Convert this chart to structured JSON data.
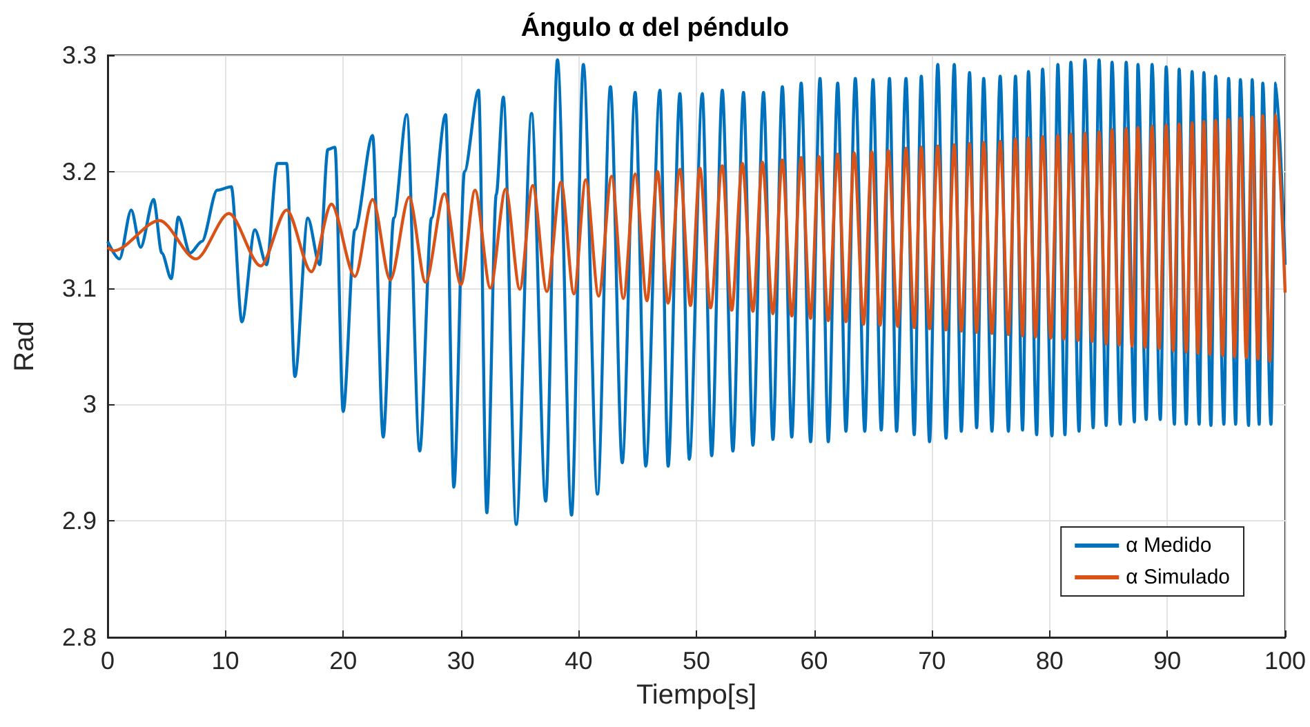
{
  "chart_data": {
    "type": "line",
    "title": "Ángulo α del péndulo",
    "xlabel": "Tiempo[s]",
    "ylabel": "Rad",
    "xlim": [
      0,
      100
    ],
    "xticks": [
      0,
      10,
      20,
      30,
      40,
      50,
      60,
      70,
      80,
      90,
      100
    ],
    "ylim": [
      2.8,
      3.3
    ],
    "yticks": [
      2.8,
      2.9,
      3,
      3.1,
      3.2,
      3.3
    ],
    "grid": true,
    "legend": "bottom right",
    "marker": "none",
    "line_style": "solid",
    "series": [
      {
        "name": "α Medido",
        "color": "#0072bd",
        "x": [
          0,
          1,
          2,
          2.8,
          3.9,
          4.6,
          5.4,
          6,
          7,
          8,
          9.3,
          10.5,
          11.4,
          12.5,
          13.5,
          14.4,
          15.2,
          15.9,
          17,
          18,
          18.7,
          19.3,
          20,
          21,
          22.5,
          23.4,
          24.3,
          25.4,
          26.5,
          27.5,
          28.7,
          29.4,
          30.3,
          31.5,
          32.2,
          33,
          33.6,
          34.7,
          36,
          37.2,
          38.2,
          39.4,
          40.4,
          41.6,
          42.7,
          43.7,
          44.8,
          45.7,
          46.9,
          47.6,
          48.6,
          49.4,
          50.5,
          51.3,
          52.2,
          53.1,
          54,
          54.8,
          55.7,
          56.5,
          57.3,
          58.1,
          58.9,
          59.7,
          60.5,
          61.2,
          62,
          62.7,
          63.5,
          64.3,
          65,
          65.7,
          66.4,
          67,
          67.8,
          68.5,
          69.1,
          69.8,
          70.5,
          71.2,
          71.9,
          72.5,
          73.2,
          73.8,
          74.4,
          75.1,
          75.8,
          76.5,
          77.1,
          77.7,
          78.2,
          78.9,
          79.4,
          80.2,
          80.7,
          81.3,
          81.8,
          82.5,
          83,
          83.7,
          84.2,
          84.8,
          85.3,
          86,
          86.5,
          87.2,
          87.5,
          88.2,
          88.7,
          89.4,
          89.9,
          90.6,
          91,
          91.6,
          92.1,
          92.7,
          93.1,
          93.7,
          94.1,
          94.8,
          95.2,
          95.8,
          96.2,
          96.9,
          97.2,
          97.8,
          98.1,
          98.8,
          99.2,
          100
        ],
        "values": [
          3.14,
          3.125,
          3.167,
          3.135,
          3.176,
          3.13,
          3.108,
          3.161,
          3.13,
          3.14,
          3.184,
          3.187,
          3.071,
          3.15,
          3.12,
          3.207,
          3.207,
          3.024,
          3.16,
          3.12,
          3.219,
          3.221,
          2.994,
          3.15,
          3.231,
          2.972,
          3.16,
          3.249,
          2.96,
          3.16,
          3.249,
          2.929,
          3.2,
          3.27,
          2.907,
          3.18,
          3.264,
          2.897,
          3.25,
          2.917,
          3.296,
          2.905,
          3.292,
          2.923,
          3.273,
          2.95,
          3.268,
          2.947,
          3.27,
          2.947,
          3.267,
          2.953,
          3.267,
          2.956,
          3.27,
          2.96,
          3.268,
          2.965,
          3.268,
          2.97,
          3.273,
          2.972,
          3.276,
          2.968,
          3.28,
          2.968,
          3.276,
          2.977,
          3.28,
          2.977,
          3.279,
          2.978,
          3.28,
          2.977,
          3.28,
          2.974,
          3.282,
          2.968,
          3.292,
          2.971,
          3.292,
          2.977,
          3.285,
          2.98,
          3.28,
          2.977,
          3.282,
          2.977,
          3.282,
          2.978,
          3.286,
          2.974,
          3.288,
          2.973,
          3.292,
          2.974,
          3.294,
          2.977,
          3.296,
          2.98,
          3.296,
          2.982,
          3.294,
          2.983,
          3.294,
          2.985,
          3.292,
          2.987,
          3.292,
          2.987,
          3.29,
          2.983,
          3.288,
          2.983,
          3.286,
          2.983,
          3.285,
          2.982,
          3.282,
          2.983,
          3.28,
          2.983,
          3.279,
          2.982,
          3.279,
          2.983,
          3.276,
          2.983,
          3.276,
          3.12
        ]
      },
      {
        "name": "α Simulado",
        "color": "#d95319",
        "x": [
          0,
          0.5,
          4.4,
          7.5,
          10.3,
          13,
          15.2,
          17.3,
          19,
          21,
          22.5,
          24,
          25.6,
          27,
          28.6,
          30,
          31.2,
          32.5,
          33.8,
          35,
          36.1,
          37.3,
          38.5,
          39.6,
          40.6,
          41.7,
          42.8,
          43.8,
          44.8,
          45.8,
          46.7,
          47.6,
          48.6,
          49.5,
          50.3,
          51.2,
          52.2,
          53,
          53.9,
          54.8,
          55.6,
          56.5,
          57.3,
          58.1,
          58.9,
          59.7,
          60.4,
          61.2,
          62,
          62.7,
          63.4,
          64.2,
          64.9,
          65.6,
          66.3,
          67.1,
          67.8,
          68.5,
          69.1,
          69.8,
          70.5,
          71.2,
          71.9,
          72.5,
          73.2,
          73.8,
          74.4,
          75.1,
          75.8,
          76.5,
          77.1,
          77.7,
          78.2,
          78.8,
          79.4,
          80.1,
          80.7,
          81.2,
          81.8,
          82.4,
          83,
          83.6,
          84.2,
          84.8,
          85.3,
          85.9,
          86.5,
          87,
          87.5,
          88.1,
          88.7,
          89.3,
          89.9,
          90.5,
          91,
          91.6,
          92.1,
          92.6,
          93.1,
          93.6,
          94.1,
          94.7,
          95.2,
          95.7,
          96.2,
          96.7,
          97.2,
          97.7,
          98.1,
          98.7,
          99.2,
          100
        ],
        "values": [
          3.135,
          3.132,
          3.158,
          3.125,
          3.164,
          3.119,
          3.167,
          3.114,
          3.172,
          3.11,
          3.176,
          3.107,
          3.178,
          3.105,
          3.181,
          3.103,
          3.184,
          3.1,
          3.185,
          3.099,
          3.188,
          3.097,
          3.191,
          3.095,
          3.193,
          3.093,
          3.196,
          3.091,
          3.198,
          3.089,
          3.2,
          3.087,
          3.202,
          3.085,
          3.203,
          3.083,
          3.205,
          3.081,
          3.207,
          3.08,
          3.208,
          3.078,
          3.21,
          3.076,
          3.212,
          3.074,
          3.213,
          3.072,
          3.215,
          3.071,
          3.216,
          3.069,
          3.217,
          3.068,
          3.218,
          3.067,
          3.22,
          3.066,
          3.221,
          3.065,
          3.222,
          3.064,
          3.223,
          3.063,
          3.224,
          3.062,
          3.225,
          3.061,
          3.226,
          3.06,
          3.228,
          3.059,
          3.229,
          3.058,
          3.23,
          3.057,
          3.231,
          3.056,
          3.232,
          3.055,
          3.233,
          3.054,
          3.234,
          3.052,
          3.236,
          3.051,
          3.237,
          3.05,
          3.238,
          3.049,
          3.239,
          3.048,
          3.24,
          3.046,
          3.241,
          3.045,
          3.242,
          3.044,
          3.243,
          3.043,
          3.244,
          3.042,
          3.245,
          3.041,
          3.246,
          3.04,
          3.247,
          3.039,
          3.248,
          3.037,
          3.249,
          3.096
        ]
      }
    ]
  }
}
